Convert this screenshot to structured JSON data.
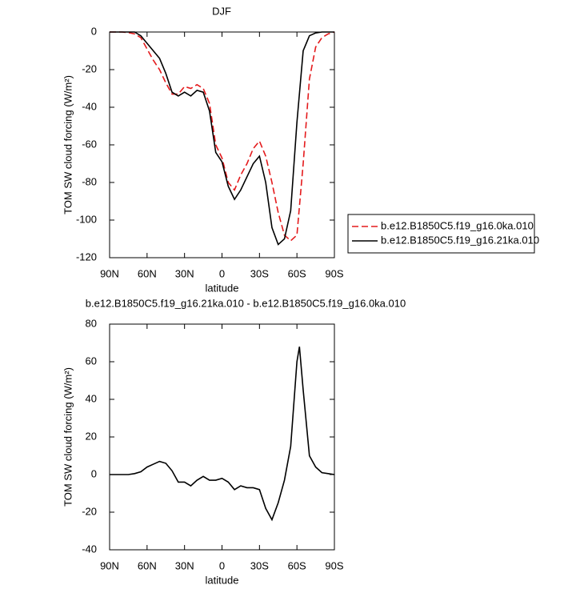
{
  "chart_data": [
    {
      "type": "line",
      "title": "DJF",
      "xlabel": "latitude",
      "ylabel": "TOM SW cloud forcing (W/m²)",
      "x": [
        90,
        85,
        80,
        75,
        70,
        65,
        60,
        55,
        50,
        45,
        40,
        35,
        30,
        25,
        20,
        15,
        10,
        5,
        0,
        -5,
        -10,
        -15,
        -20,
        -25,
        -30,
        -35,
        -40,
        -45,
        -50,
        -55,
        -60,
        -65,
        -70,
        -75,
        -80,
        -85,
        -90
      ],
      "series": [
        {
          "name": "b.e12.B1850C5.f19_g16.0ka.010",
          "color": "#e41a1c",
          "style": "dashed",
          "values": [
            0,
            0,
            0,
            -0.3,
            -1,
            -3,
            -9,
            -15,
            -20,
            -27,
            -33,
            -33,
            -29,
            -30,
            -28,
            -30,
            -38,
            -60,
            -67,
            -80,
            -84,
            -76,
            -70,
            -62,
            -58,
            -66,
            -80,
            -96,
            -108,
            -111,
            -108,
            -70,
            -25,
            -8,
            -3,
            -1,
            0
          ]
        },
        {
          "name": "b.e12.B1850C5.f19_g16.21ka.010",
          "color": "#000000",
          "style": "solid",
          "values": [
            0,
            0,
            0,
            0,
            0,
            -2,
            -6,
            -10,
            -14,
            -22,
            -32,
            -34,
            -32,
            -34,
            -31,
            -32,
            -42,
            -64,
            -69,
            -82,
            -89,
            -84,
            -77,
            -70,
            -66,
            -80,
            -104,
            -113,
            -110,
            -95,
            -48,
            -10,
            -2,
            -0.5,
            0,
            0,
            0
          ]
        }
      ],
      "xlim": [
        90,
        -90
      ],
      "xticks": [
        {
          "value": 90,
          "label": "90N"
        },
        {
          "value": 60,
          "label": "60N"
        },
        {
          "value": 30,
          "label": "30N"
        },
        0,
        {
          "value": -30,
          "label": "30S"
        },
        {
          "value": -60,
          "label": "60S"
        },
        {
          "value": -90,
          "label": "90S"
        }
      ],
      "ylim": [
        -120,
        0
      ],
      "yticks": [
        -120,
        -100,
        -80,
        -60,
        -40,
        -20,
        0
      ]
    },
    {
      "type": "line",
      "title": "b.e12.B1850C5.f19_g16.21ka.010 - b.e12.B1850C5.f19_g16.0ka.010",
      "xlabel": "latitude",
      "ylabel": "TOM SW cloud forcing (W/m²)",
      "x": [
        90,
        85,
        80,
        75,
        70,
        65,
        60,
        55,
        50,
        45,
        40,
        35,
        30,
        25,
        20,
        15,
        10,
        5,
        0,
        -5,
        -10,
        -15,
        -20,
        -25,
        -30,
        -35,
        -40,
        -45,
        -50,
        -55,
        -60,
        -62,
        -65,
        -70,
        -75,
        -80,
        -85,
        -90
      ],
      "values": [
        0,
        0,
        0,
        0,
        0.5,
        1.5,
        4,
        5.5,
        7,
        6,
        2,
        -4,
        -4,
        -6,
        -3,
        -1,
        -3,
        -3,
        -2,
        -4,
        -8,
        -6,
        -7,
        -7,
        -8,
        -18,
        -24,
        -15,
        -3,
        15,
        60,
        68,
        45,
        10,
        4,
        1,
        0.5,
        0
      ],
      "color": "#000000",
      "xlim": [
        90,
        -90
      ],
      "xticks": [
        {
          "value": 90,
          "label": "90N"
        },
        {
          "value": 60,
          "label": "60N"
        },
        {
          "value": 30,
          "label": "30N"
        },
        0,
        {
          "value": -30,
          "label": "30S"
        },
        {
          "value": -60,
          "label": "60S"
        },
        {
          "value": -90,
          "label": "90S"
        }
      ],
      "ylim": [
        -40,
        80
      ],
      "yticks": [
        -40,
        -20,
        0,
        20,
        40,
        60,
        80
      ]
    }
  ]
}
